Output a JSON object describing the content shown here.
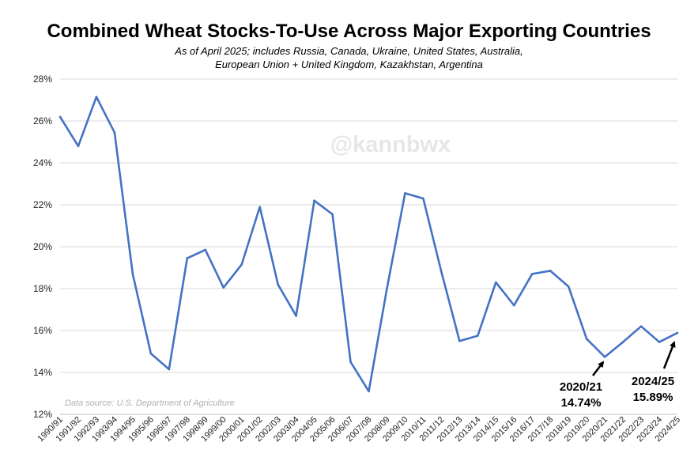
{
  "chart_data": {
    "type": "line",
    "title": "Combined Wheat Stocks-To-Use Across Major Exporting Countries",
    "subtitle_lines": [
      "As of April 2025; includes Russia, Canada, Ukraine, United States, Australia,",
      "European Union + United Kingdom, Kazakhstan, Argentina"
    ],
    "categories": [
      "1990/91",
      "1991/92",
      "1992/93",
      "1993/94",
      "1994/95",
      "1995/96",
      "1996/97",
      "1997/98",
      "1998/99",
      "1999/00",
      "2000/01",
      "2001/02",
      "2002/03",
      "2003/04",
      "2004/05",
      "2005/06",
      "2006/07",
      "2007/08",
      "2008/09",
      "2009/10",
      "2010/11",
      "2011/12",
      "2012/13",
      "2013/14",
      "2014/15",
      "2015/16",
      "2016/17",
      "2017/18",
      "2018/19",
      "2019/20",
      "2020/21",
      "2021/22",
      "2022/23",
      "2023/24",
      "2024/25"
    ],
    "values": [
      26.2,
      24.8,
      27.15,
      25.45,
      18.7,
      14.9,
      14.15,
      19.45,
      19.85,
      18.05,
      19.15,
      21.9,
      18.2,
      16.7,
      22.2,
      21.55,
      14.5,
      13.1,
      18.0,
      22.55,
      22.3,
      18.8,
      15.5,
      15.75,
      18.3,
      17.2,
      18.7,
      18.85,
      18.1,
      15.6,
      14.74,
      15.45,
      16.2,
      15.45,
      15.89
    ],
    "y_ticks": [
      "12%",
      "14%",
      "16%",
      "18%",
      "20%",
      "22%",
      "24%",
      "26%",
      "28%"
    ],
    "ylim": [
      12,
      28
    ],
    "grid": true,
    "line_color": "#4472c4",
    "annotations": [
      {
        "label_lines": [
          "2020/21",
          "14.74%"
        ],
        "category": "2020/21"
      },
      {
        "label_lines": [
          "2024/25",
          "15.89%"
        ],
        "category": "2024/25"
      }
    ],
    "watermark": "@kannbwx",
    "source_note": "Data source: U.S. Department of Agriculture"
  }
}
